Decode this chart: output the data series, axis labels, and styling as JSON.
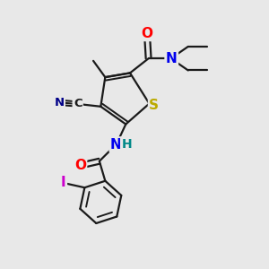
{
  "bg_color": "#e8e8e8",
  "bond_color": "#1a1a1a",
  "atom_colors": {
    "O": "#ff0000",
    "N": "#0000ee",
    "S": "#bbaa00",
    "I": "#cc00cc",
    "H": "#008888",
    "C": "#1a1a1a",
    "N_dark": "#000088"
  },
  "figsize": [
    3.0,
    3.0
  ],
  "dpi": 100
}
